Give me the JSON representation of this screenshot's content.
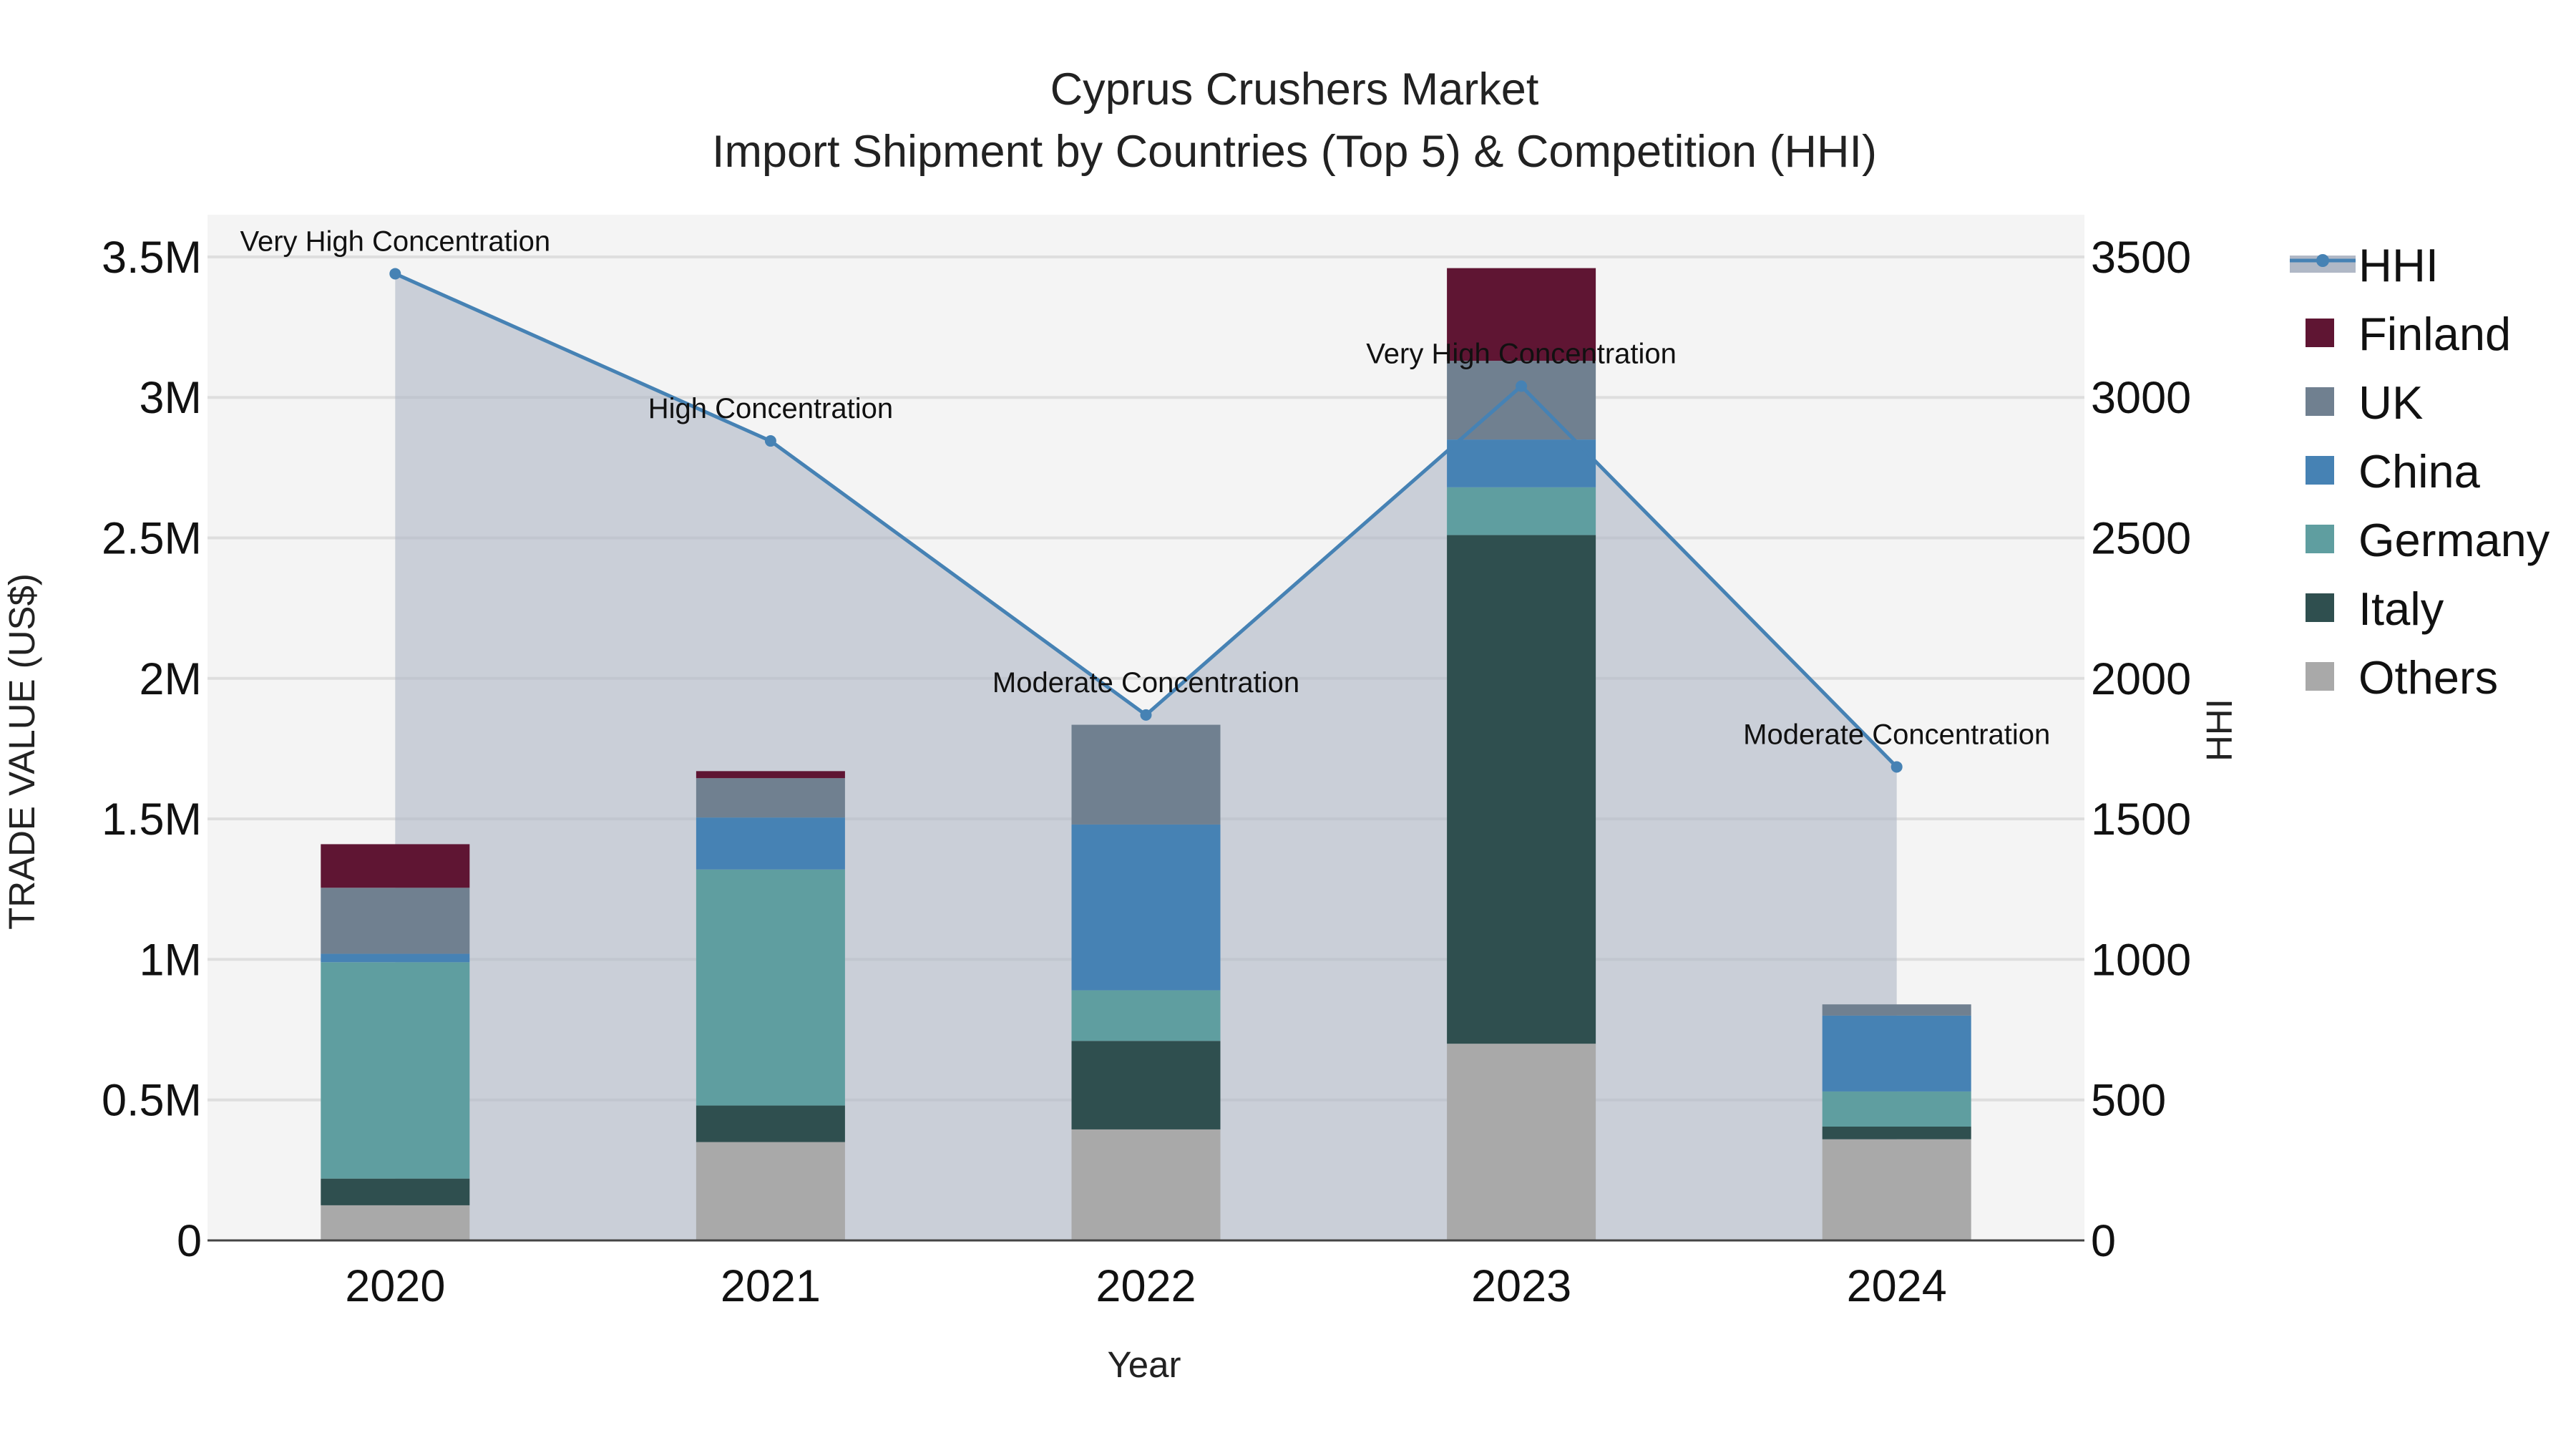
{
  "chart_data": {
    "type": "bar",
    "title_line1": "Cyprus Crushers Market",
    "title_line2": "Import Shipment by Countries (Top 5) & Competition (HHI)",
    "xlabel": "Year",
    "ylabel": "TRADE VALUE (US$)",
    "y2label": "HHI",
    "categories": [
      "2020",
      "2021",
      "2022",
      "2023",
      "2024"
    ],
    "ylim": [
      0,
      3650000
    ],
    "y2lim": [
      0,
      3650
    ],
    "yticks": [
      {
        "value": 0,
        "label": "0"
      },
      {
        "value": 500000,
        "label": "0.5M"
      },
      {
        "value": 1000000,
        "label": "1M"
      },
      {
        "value": 1500000,
        "label": "1.5M"
      },
      {
        "value": 2000000,
        "label": "2M"
      },
      {
        "value": 2500000,
        "label": "2.5M"
      },
      {
        "value": 3000000,
        "label": "3M"
      },
      {
        "value": 3500000,
        "label": "3.5M"
      }
    ],
    "y2ticks": [
      {
        "value": 0,
        "label": "0"
      },
      {
        "value": 500,
        "label": "500"
      },
      {
        "value": 1000,
        "label": "1000"
      },
      {
        "value": 1500,
        "label": "1500"
      },
      {
        "value": 2000,
        "label": "2000"
      },
      {
        "value": 2500,
        "label": "2500"
      },
      {
        "value": 3000,
        "label": "3000"
      },
      {
        "value": 3500,
        "label": "3500"
      }
    ],
    "series": [
      {
        "name": "Others",
        "color": "#a9a9a9",
        "values": [
          125000,
          350000,
          395000,
          700000,
          360000
        ]
      },
      {
        "name": "Italy",
        "color": "#2f4f4f",
        "values": [
          95000,
          130000,
          315000,
          1810000,
          45000
        ]
      },
      {
        "name": "Germany",
        "color": "#5f9ea0",
        "values": [
          770000,
          840000,
          180000,
          170000,
          125000
        ]
      },
      {
        "name": "China",
        "color": "#4682b4",
        "values": [
          30000,
          185000,
          590000,
          170000,
          270000
        ]
      },
      {
        "name": "UK",
        "color": "#708090",
        "values": [
          235000,
          140000,
          355000,
          280000,
          40000
        ]
      },
      {
        "name": "Finland",
        "color": "#5f1533",
        "values": [
          155000,
          25000,
          0,
          330000,
          0
        ]
      }
    ],
    "legend_order": [
      "HHI",
      "Finland",
      "UK",
      "China",
      "Germany",
      "Italy",
      "Others"
    ],
    "hhi": {
      "name": "HHI",
      "color": "#4682b4",
      "fill_color": "#b0b8c6",
      "values": [
        3440,
        2845,
        1870,
        3040,
        1685
      ],
      "annotations": [
        "Very High Concentration",
        "High Concentration",
        "Moderate Concentration",
        "Very High Concentration",
        "Moderate Concentration"
      ]
    }
  }
}
